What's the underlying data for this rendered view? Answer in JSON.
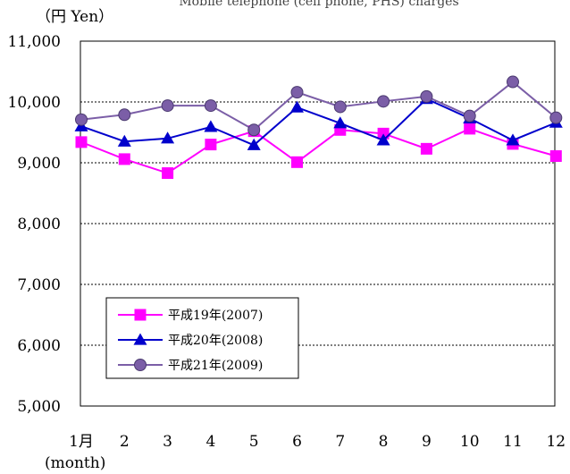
{
  "chart_data": {
    "type": "line",
    "title": "Mobile telephone (cell phone, PHS) charges",
    "ylabel": "（円  Yen）",
    "xlabel": "(month)",
    "categories": [
      "1月",
      "2",
      "3",
      "4",
      "5",
      "6",
      "7",
      "8",
      "9",
      "10",
      "11",
      "12"
    ],
    "ylim": [
      5000,
      11000
    ],
    "yticks": [
      5000,
      6000,
      7000,
      8000,
      9000,
      10000,
      11000
    ],
    "ytick_labels": [
      "5,000",
      "6,000",
      "7,000",
      "8,000",
      "9,000",
      "10,000",
      "11,000"
    ],
    "grid": "horizontal-dotted",
    "legend": "bottom-left",
    "series": [
      {
        "name": "平成19年(2007)",
        "color": "#ff00ff",
        "marker": "square",
        "values": [
          9340,
          9060,
          8830,
          9300,
          9520,
          9010,
          9540,
          9480,
          9230,
          9560,
          9310,
          9110
        ]
      },
      {
        "name": "平成20年(2008)",
        "color": "#0000cc",
        "marker": "triangle",
        "values": [
          9600,
          9350,
          9400,
          9590,
          9290,
          9910,
          9650,
          9370,
          10050,
          9730,
          9370,
          9660
        ]
      },
      {
        "name": "平成21年(2009)",
        "color": "#7b5ea7",
        "marker": "circle",
        "values": [
          9710,
          9790,
          9940,
          9940,
          9540,
          10160,
          9920,
          10010,
          10090,
          9770,
          10330,
          9740
        ]
      }
    ]
  }
}
